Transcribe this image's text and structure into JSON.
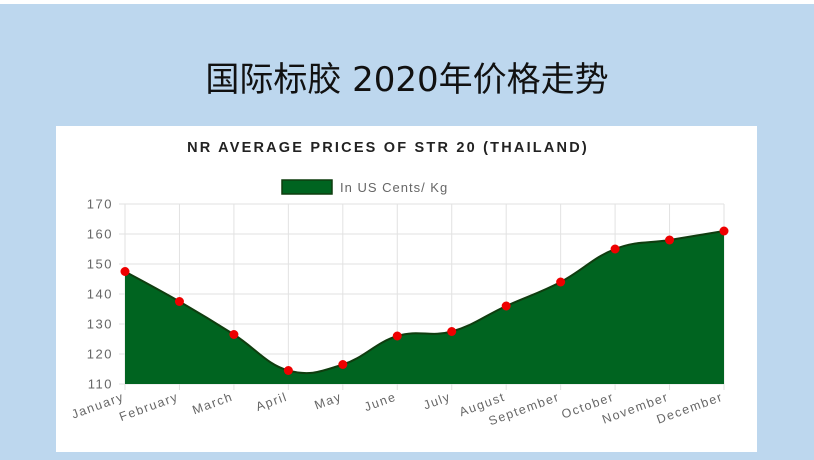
{
  "slide": {
    "title": "国际标胶 2020年价格走势"
  },
  "chart_data": {
    "type": "area",
    "title": "NR AVERAGE PRICES OF STR 20 (THAILAND)",
    "legend_position": "top",
    "categories": [
      "January",
      "February",
      "March",
      "April",
      "May",
      "June",
      "July",
      "August",
      "September",
      "October",
      "November",
      "December"
    ],
    "series": [
      {
        "name": "In US Cents/ Kg",
        "values": [
          147.5,
          137.5,
          126.5,
          114.5,
          116.5,
          126,
          127.5,
          136,
          144,
          155,
          158,
          161
        ]
      }
    ],
    "ylim": [
      110,
      170
    ],
    "yticks": [
      110,
      120,
      130,
      140,
      150,
      160,
      170
    ],
    "grid": true,
    "colors": {
      "fill": "#006420",
      "line": "#0f3d0f",
      "marker": "#ee0000",
      "grid": "#e2e2e2",
      "axis_text": "#666666",
      "title": "#222222"
    }
  }
}
